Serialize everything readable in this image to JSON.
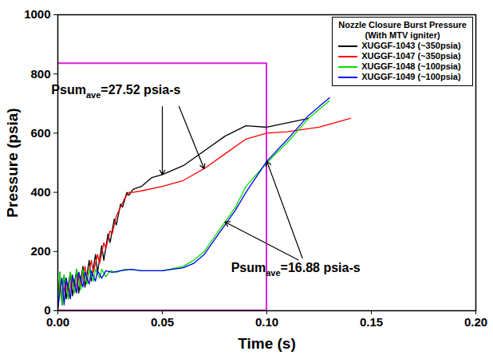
{
  "chart_data": {
    "type": "line",
    "x_label": "Time (s)",
    "y_label": "Pressure (psia)",
    "xlim": [
      0,
      0.2
    ],
    "ylim": [
      0,
      1000
    ],
    "xticks": [
      {
        "value": 0,
        "label": "0.00"
      },
      {
        "value": 0.05,
        "label": "0.05"
      },
      {
        "value": 0.1,
        "label": "0.10"
      },
      {
        "value": 0.15,
        "label": "0.15"
      },
      {
        "value": 0.2,
        "label": "0.20"
      }
    ],
    "yticks": [
      0,
      200,
      400,
      600,
      800,
      1000
    ],
    "grid": false,
    "legend": "top-right",
    "legend_title": "Nozzle Closure Burst Pressure",
    "legend_subtitle": "(With MTV igniter)",
    "highlight": {
      "x": [
        0,
        0.1
      ],
      "y": [
        0,
        835
      ],
      "color": "#e020e0"
    },
    "annotations": [
      {
        "text": "Psum",
        "subscript": "ave",
        "text_after": "=27.52 psia-s",
        "points_to": [
          "XUGGF-1043 (~350psia)",
          "XUGGF-1047 (~350psia)"
        ]
      },
      {
        "text": "Psum",
        "subscript": "ave",
        "text_after": "=16.88 psia-s",
        "points_to": [
          "XUGGF-1049 (~100psia)",
          "XUGGF-1048 (~100psia)"
        ]
      }
    ],
    "series": [
      {
        "name": "XUGGF-1043 (~350psia)",
        "color": "#000000",
        "x": [
          0,
          0.001,
          0.002,
          0.003,
          0.004,
          0.006,
          0.007,
          0.009,
          0.01,
          0.012,
          0.013,
          0.015,
          0.016,
          0.018,
          0.019,
          0.021,
          0.022,
          0.024,
          0.025,
          0.027,
          0.028,
          0.03,
          0.031,
          0.033,
          0.034,
          0.036,
          0.04,
          0.045,
          0.05,
          0.06,
          0.07,
          0.08,
          0.09,
          0.1,
          0.11,
          0.12
        ],
        "values": [
          0,
          130,
          20,
          120,
          40,
          130,
          50,
          140,
          60,
          150,
          80,
          170,
          100,
          190,
          130,
          220,
          170,
          260,
          230,
          310,
          290,
          360,
          350,
          400,
          390,
          410,
          420,
          450,
          460,
          490,
          540,
          590,
          625,
          620,
          635,
          650
        ]
      },
      {
        "name": "XUGGF-1047 (~350psia)",
        "color": "#ff0000",
        "x": [
          0,
          0.001,
          0.002,
          0.004,
          0.005,
          0.007,
          0.008,
          0.01,
          0.011,
          0.013,
          0.014,
          0.016,
          0.017,
          0.019,
          0.02,
          0.022,
          0.023,
          0.025,
          0.026,
          0.028,
          0.03,
          0.032,
          0.034,
          0.036,
          0.04,
          0.05,
          0.06,
          0.07,
          0.08,
          0.09,
          0.1,
          0.11,
          0.125,
          0.14
        ],
        "values": [
          10,
          120,
          30,
          110,
          40,
          120,
          60,
          130,
          80,
          150,
          100,
          170,
          130,
          190,
          160,
          230,
          210,
          270,
          260,
          320,
          350,
          380,
          400,
          400,
          405,
          420,
          440,
          480,
          530,
          580,
          600,
          605,
          620,
          650
        ]
      },
      {
        "name": "XUGGF-1048 (~100psia)",
        "color": "#00e000",
        "x": [
          0,
          0.001,
          0.002,
          0.003,
          0.005,
          0.006,
          0.008,
          0.009,
          0.011,
          0.012,
          0.014,
          0.015,
          0.017,
          0.018,
          0.02,
          0.021,
          0.023,
          0.025,
          0.028,
          0.032,
          0.035,
          0.04,
          0.05,
          0.06,
          0.065,
          0.07,
          0.075,
          0.08,
          0.085,
          0.09,
          0.1,
          0.11,
          0.12,
          0.13
        ],
        "values": [
          20,
          130,
          20,
          120,
          40,
          130,
          60,
          140,
          70,
          140,
          90,
          140,
          100,
          140,
          110,
          140,
          115,
          135,
          130,
          140,
          140,
          135,
          135,
          150,
          170,
          200,
          250,
          300,
          350,
          420,
          500,
          570,
          650,
          710
        ]
      },
      {
        "name": "XUGGF-1049 (~100psia)",
        "color": "#0000ff",
        "x": [
          0,
          0.002,
          0.003,
          0.004,
          0.006,
          0.007,
          0.009,
          0.01,
          0.012,
          0.013,
          0.015,
          0.016,
          0.018,
          0.019,
          0.021,
          0.023,
          0.026,
          0.03,
          0.035,
          0.04,
          0.05,
          0.06,
          0.065,
          0.07,
          0.075,
          0.08,
          0.085,
          0.09,
          0.1,
          0.11,
          0.12,
          0.13
        ],
        "values": [
          10,
          110,
          20,
          110,
          40,
          120,
          60,
          130,
          80,
          130,
          90,
          135,
          100,
          135,
          110,
          135,
          130,
          135,
          140,
          135,
          135,
          145,
          160,
          190,
          240,
          290,
          340,
          400,
          505,
          580,
          660,
          720
        ]
      }
    ]
  }
}
